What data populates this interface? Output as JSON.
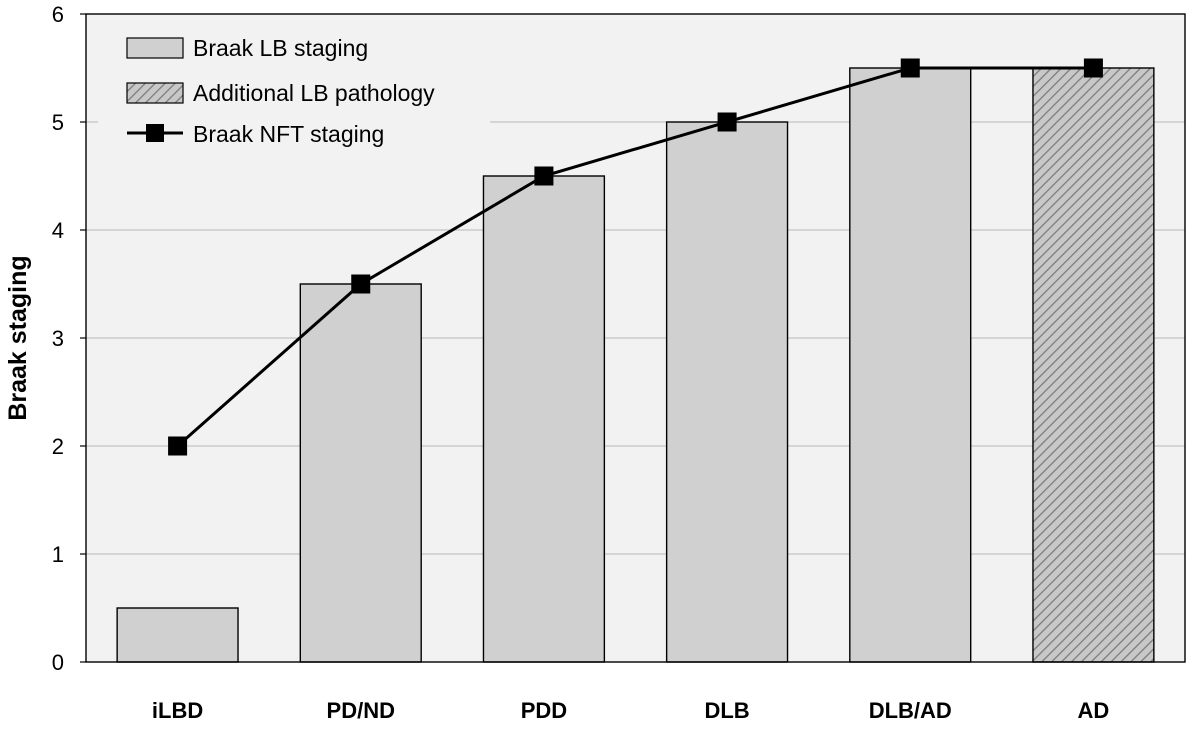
{
  "chart_data": {
    "type": "bar",
    "categories": [
      "iLBD",
      "PD/ND",
      "PDD",
      "DLB",
      "DLB/AD",
      "AD"
    ],
    "ylabel": "Braak staging",
    "xlabel": "",
    "ylim": [
      0,
      6
    ],
    "yticks": [
      "0",
      "1",
      "2",
      "3",
      "4",
      "5",
      "6"
    ],
    "grid": true,
    "series": [
      {
        "name": "Braak LB staging",
        "type": "bar",
        "values": [
          0.5,
          3.5,
          4.5,
          5.0,
          5.5,
          null
        ],
        "color": "#d0d0d0"
      },
      {
        "name": "Additional LB pathology",
        "type": "bar-hatched",
        "values": [
          null,
          null,
          null,
          null,
          null,
          5.5
        ],
        "color": "#c4c4c4"
      },
      {
        "name": "Braak NFT staging",
        "type": "line",
        "marker": "square",
        "values": [
          2.0,
          3.5,
          4.5,
          5.0,
          5.5,
          5.5
        ],
        "color": "#000000"
      }
    ],
    "legend_position": "top-left",
    "plot_background": "#f2f2f2"
  }
}
